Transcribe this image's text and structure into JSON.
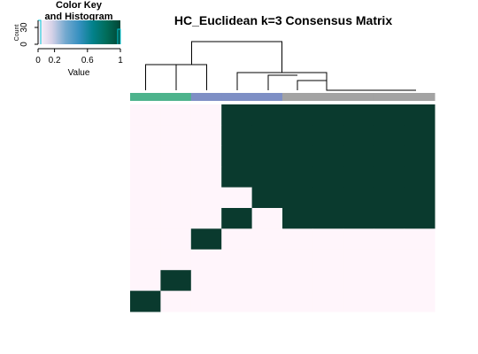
{
  "chart_data": {
    "type": "heatmap",
    "title": "HC_Euclidean k=3 Consensus Matrix",
    "color_key": {
      "title_line1": "Color Key",
      "title_line2": "and Histogram",
      "x_label": "Value",
      "y_label": "Count",
      "x_ticks": [
        "0",
        "0.2",
        "0.6",
        "1"
      ],
      "y_ticks": [
        "0",
        "30"
      ],
      "gradient": [
        "#fff5fb",
        "#d7d2e8",
        "#74a9cf",
        "#3690c0",
        "#02818a",
        "#016c59",
        "#014636"
      ]
    },
    "low_color": "#fff5fb",
    "high_color": "#0a3a2e",
    "n": 10,
    "cluster_colors": [
      "#4db38c",
      "#4db38c",
      "#7e8fc5",
      "#7e8fc5",
      "#7e8fc5",
      "#a3a3a3",
      "#a3a3a3",
      "#a3a3a3",
      "#a3a3a3",
      "#a3a3a3"
    ],
    "matrix": [
      [
        0,
        0,
        0,
        1,
        1,
        1,
        1,
        1,
        1,
        1
      ],
      [
        0,
        0,
        0,
        1,
        1,
        1,
        1,
        1,
        1,
        1
      ],
      [
        0,
        0,
        0,
        1,
        1,
        1,
        1,
        1,
        1,
        1
      ],
      [
        0,
        0,
        0,
        1,
        1,
        1,
        1,
        1,
        1,
        1
      ],
      [
        0,
        0,
        0,
        0,
        1,
        1,
        1,
        1,
        1,
        1
      ],
      [
        0,
        0,
        0,
        1,
        0,
        1,
        1,
        1,
        1,
        1
      ],
      [
        0,
        0,
        1,
        0,
        0,
        0,
        0,
        0,
        0,
        0
      ],
      [
        0,
        0,
        0,
        0,
        0,
        0,
        0,
        0,
        0,
        0
      ],
      [
        0,
        1,
        0,
        0,
        0,
        0,
        0,
        0,
        0,
        0
      ],
      [
        1,
        0,
        0,
        0,
        0,
        0,
        0,
        0,
        0,
        0
      ]
    ]
  }
}
